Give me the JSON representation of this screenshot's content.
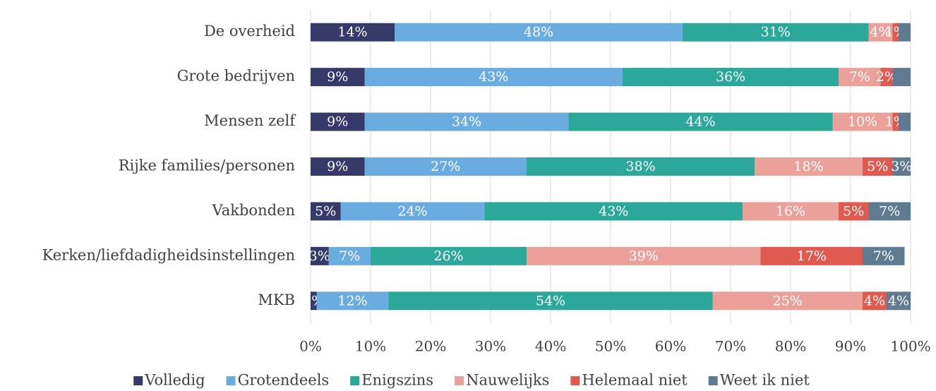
{
  "chart_data": {
    "type": "stacked_bar_horizontal",
    "categories": [
      "De overheid",
      "Grote bedrijven",
      "Mensen zelf",
      "Rijke families/personen",
      "Vakbonden",
      "Kerken/liefdadigheidsinstellingen",
      "MKB"
    ],
    "series": [
      {
        "name": "Volledig",
        "color": "#353a68",
        "values": [
          14,
          9,
          9,
          9,
          5,
          3,
          1
        ],
        "value_labels": [
          "14%",
          "9%",
          "9%",
          "9%",
          "5%",
          "3%",
          "1%"
        ]
      },
      {
        "name": "Grotendeels",
        "color": "#6aace0",
        "values": [
          48,
          43,
          34,
          27,
          24,
          7,
          12
        ],
        "value_labels": [
          "48%",
          "43%",
          "34%",
          "27%",
          "24%",
          "7%",
          "12%"
        ]
      },
      {
        "name": "Enigszins",
        "color": "#2ba89a",
        "values": [
          31,
          36,
          44,
          38,
          43,
          26,
          54
        ],
        "value_labels": [
          "31%",
          "36%",
          "44%",
          "38%",
          "43%",
          "26%",
          "54%"
        ]
      },
      {
        "name": "Nauwelijks",
        "color": "#eba19a",
        "values": [
          4,
          7,
          10,
          18,
          16,
          39,
          25
        ],
        "value_labels": [
          "4%",
          "7%",
          "10%",
          "18%",
          "16%",
          "39%",
          "25%"
        ]
      },
      {
        "name": "Helemaal niet",
        "color": "#e05a50",
        "values": [
          1,
          2,
          1,
          5,
          5,
          17,
          4
        ],
        "value_labels": [
          "1%",
          "2%",
          "1%",
          "5%",
          "5%",
          "17%",
          "4%"
        ]
      },
      {
        "name": "Weet ik niet",
        "color": "#5f7b92",
        "values": [
          2,
          3,
          2,
          3,
          7,
          7,
          4
        ],
        "value_labels": [
          null,
          null,
          null,
          "3%",
          "7%",
          "7%",
          "4%"
        ]
      }
    ],
    "xlim": [
      0,
      100
    ],
    "xticks": [
      {
        "value": 0,
        "label": "0%"
      },
      {
        "value": 10,
        "label": "10%"
      },
      {
        "value": 20,
        "label": "20%"
      },
      {
        "value": 30,
        "label": "30%"
      },
      {
        "value": 40,
        "label": "40%"
      },
      {
        "value": 50,
        "label": "50%"
      },
      {
        "value": 60,
        "label": "60%"
      },
      {
        "value": 70,
        "label": "70%"
      },
      {
        "value": 80,
        "label": "80%"
      },
      {
        "value": 90,
        "label": "90%"
      },
      {
        "value": 100,
        "label": "100%"
      }
    ],
    "grid": true,
    "legend": "bottom"
  }
}
